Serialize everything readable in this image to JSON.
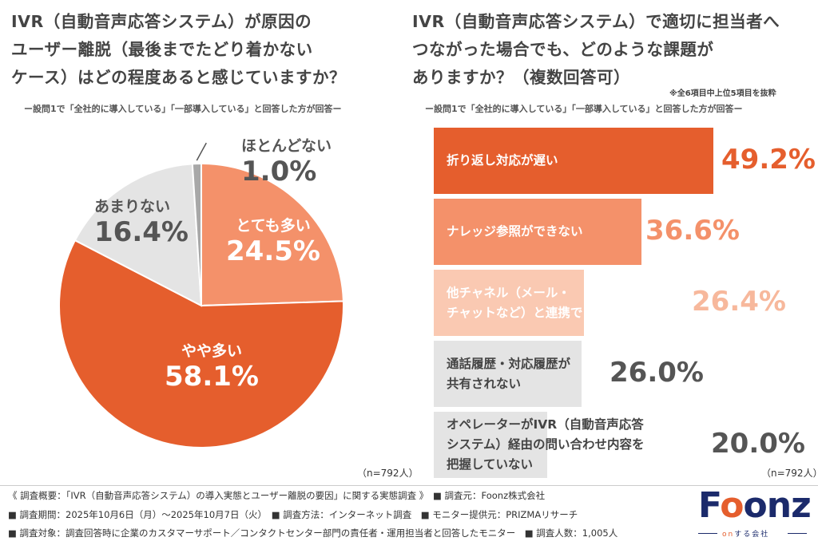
{
  "left_panel": {
    "title_lines": [
      "IVR（自動音声応答システム）が原因の",
      "ユーザー離脱（最後までたどり着かない",
      "ケース）はどの程度あると感じていますか？"
    ],
    "subtitle": "ー設問1で「全社的に導入している」「一部導入している」と回答した方が回答ー",
    "n_note": "（n=792人）"
  },
  "right_panel": {
    "title_lines": [
      "IVR（自動音声応答システム）で適切に担当者へ",
      "つながった場合でも、どのような課題が",
      "ありますか？（複数回答可）"
    ],
    "note": "※全6項目中上位5項目を抜粋",
    "subtitle": "ー設問1で「全社的に導入している」「一部導入している」と回答した方が回答ー",
    "n_note": "（n=792人）"
  },
  "chart_data": [
    {
      "type": "pie",
      "start": "top, clockwise",
      "slices": [
        {
          "label": "とても多い",
          "value": 24.5,
          "display": "24.5%",
          "color": "#F4916A"
        },
        {
          "label": "やや多い",
          "value": 58.1,
          "display": "58.1%",
          "color": "#E55E2D"
        },
        {
          "label": "あまりない",
          "value": 16.4,
          "display": "16.4%",
          "color": "#E4E4E4"
        },
        {
          "label": "ほとんどない",
          "value": 1.0,
          "display": "1.0%",
          "color": "#A8A8A8"
        }
      ]
    },
    {
      "type": "bar",
      "orientation": "horizontal",
      "categories": [
        [
          "折り返し対応が遅い"
        ],
        [
          "ナレッジ参照ができない"
        ],
        [
          "他チャネル（メール・",
          "チャットなど）と連携できない"
        ],
        [
          "通話履歴・対応履歴が",
          "共有されない"
        ],
        [
          "オペレーターがIVR（自動音声応答",
          "システム）経由の問い合わせ内容を",
          "把握していない"
        ]
      ],
      "values": [
        49.2,
        36.6,
        26.4,
        26.0,
        20.0
      ],
      "display": [
        "49.2%",
        "36.6%",
        "26.4%",
        "26.0%",
        "20.0%"
      ],
      "colors": [
        "#E55E2D",
        "#F4916A",
        "#FAC9B2",
        "#E4E4E4",
        "#E4E4E4"
      ],
      "label_colors": [
        "#FFFFFF",
        "#FFFFFF",
        "#FFFFFF",
        "#444444",
        "#444444"
      ],
      "value_colors": [
        "#E55E2D",
        "#F4916A",
        "#F7B89C",
        "#555555",
        "#555555"
      ]
    }
  ],
  "footer": {
    "line1": "《 調査概要：「IVR（自動音声応答システム）の導入実態とユーザー離脱の要因」に関する実態調査 》　■ 調査元：Foonz株式会社",
    "line2": "■ 調査期間：2025年10月6日（月）〜2025年10月7日（火）　■ 調査方法：インターネット調査　■ モニター提供元：PRIZMAリサーチ",
    "line3": "■ 調査対象：調査回答時に企業のカスタマーサポート／コンタクトセンター部門の責任者・運用担当者と回答したモニター　■ 調査人数：1,005人"
  },
  "logo": {
    "text_pre": "F",
    "text_o": "o",
    "text_post": "onz",
    "tag_on": "on",
    "tag_rest": "する会社"
  }
}
